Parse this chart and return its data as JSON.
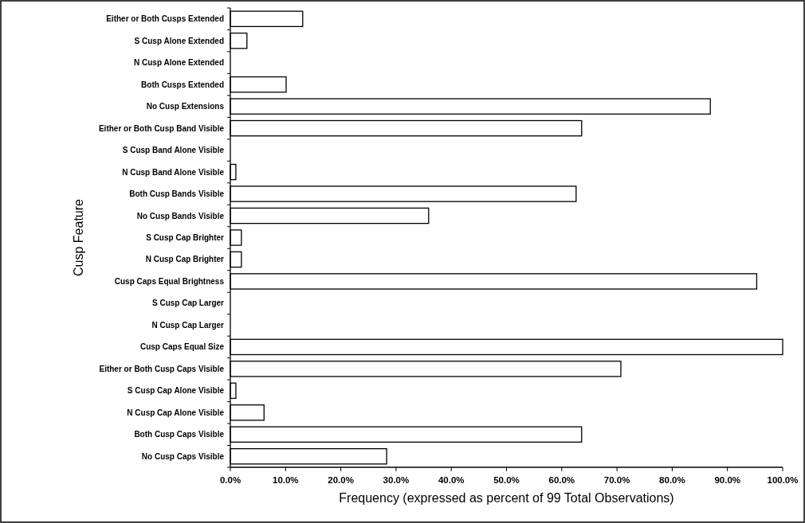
{
  "chart_data": {
    "type": "bar",
    "orientation": "horizontal",
    "xlabel": "Frequency (expressed as percent of 99 Total Observations)",
    "ylabel": "Cusp Feature",
    "categories": [
      "Either or Both Cusps Extended",
      "S Cusp Alone Extended",
      "N Cusp Alone Extended",
      "Both Cusps Extended",
      "No Cusp Extensions",
      "Either or Both Cusp Band Visible",
      "S Cusp Band Alone Visible",
      "N Cusp Band Alone Visible",
      "Both Cusp Bands Visible",
      "No Cusp Bands Visible",
      "S Cusp Cap Brighter",
      "N Cusp Cap Brighter",
      "Cusp Caps Equal Brightness",
      "S Cusp Cap Larger",
      "N Cusp Cap Larger",
      "Cusp Caps Equal Size",
      "Either or Both Cusp Caps Visible",
      "S Cusp Cap Alone Visible",
      "N Cusp Cap Alone Visible",
      "Both Cusp Caps Visible",
      "No Cusp Caps Visible"
    ],
    "values": [
      13.1,
      3.0,
      0,
      10.1,
      86.9,
      63.6,
      0,
      1.0,
      62.6,
      35.9,
      2.0,
      2.0,
      95.3,
      0,
      0,
      100,
      70.7,
      1.0,
      6.1,
      63.6,
      28.3
    ],
    "color": "#ffffff",
    "xlim": [
      0,
      100
    ],
    "xticks": [
      {
        "value": 0,
        "label": "0.0%"
      },
      {
        "value": 10,
        "label": "10.0%"
      },
      {
        "value": 20,
        "label": "20.0%"
      },
      {
        "value": 30,
        "label": "30.0%"
      },
      {
        "value": 40,
        "label": "40.0%"
      },
      {
        "value": 50,
        "label": "50.0%"
      },
      {
        "value": 60,
        "label": "60.0%"
      },
      {
        "value": 70,
        "label": "70.0%"
      },
      {
        "value": 80,
        "label": "80.0%"
      },
      {
        "value": 90,
        "label": "90.0%"
      },
      {
        "value": 100,
        "label": "100.0%"
      }
    ],
    "grid": false
  }
}
